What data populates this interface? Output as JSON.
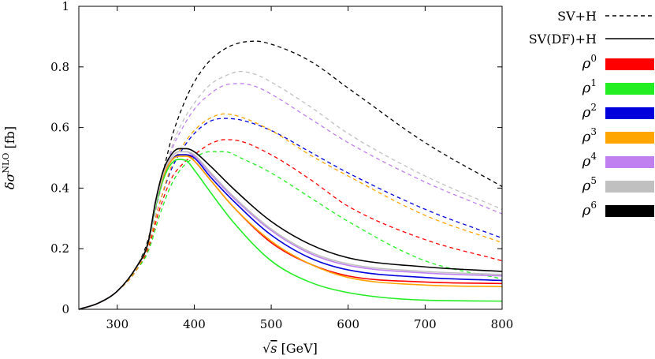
{
  "chart_data": {
    "type": "line",
    "title": "",
    "xlabel": "√s [GeV]",
    "ylabel": "δσ^NLO [fb]",
    "xlim": [
      250,
      800
    ],
    "ylim": [
      0,
      1
    ],
    "x_ticks": [
      300,
      400,
      500,
      600,
      700,
      800
    ],
    "y_ticks": [
      0,
      0.2,
      0.4,
      0.6,
      0.8,
      1
    ],
    "x_tick_labels": [
      "300",
      "400",
      "500",
      "600",
      "700",
      "800"
    ],
    "y_tick_labels": [
      "0",
      "0.2",
      "0.4",
      "0.6",
      "0.8",
      "1"
    ],
    "grid": false,
    "legend_position": "right, outside plot",
    "legend": [
      {
        "label": "SV+H",
        "style": "dashed",
        "color": "#000000"
      },
      {
        "label": "SV(DF)+H",
        "style": "solid",
        "color": "#000000"
      },
      {
        "label": "ρ",
        "sup": "0",
        "style": "band",
        "color": "#ff0000"
      },
      {
        "label": "ρ",
        "sup": "1",
        "style": "band",
        "color": "#22ee22"
      },
      {
        "label": "ρ",
        "sup": "2",
        "style": "band",
        "color": "#0000dd"
      },
      {
        "label": "ρ",
        "sup": "3",
        "style": "band",
        "color": "#ffa500"
      },
      {
        "label": "ρ",
        "sup": "4",
        "style": "band",
        "color": "#c080f0"
      },
      {
        "label": "ρ",
        "sup": "5",
        "style": "band",
        "color": "#c0c0c0"
      },
      {
        "label": "ρ",
        "sup": "6",
        "style": "band",
        "color": "#000000"
      }
    ],
    "series": [
      {
        "name": "SV+H ρ⁰",
        "color": "#ff0000",
        "dashed": true,
        "x": [
          250,
          275,
          300,
          325,
          340,
          355,
          370,
          385,
          400,
          420,
          440,
          460,
          500,
          550,
          600,
          700,
          800
        ],
        "y": [
          0,
          0.02,
          0.06,
          0.13,
          0.2,
          0.33,
          0.43,
          0.48,
          0.51,
          0.545,
          0.56,
          0.555,
          0.51,
          0.43,
          0.34,
          0.23,
          0.16
        ]
      },
      {
        "name": "SV+H ρ¹",
        "color": "#22ee22",
        "dashed": true,
        "x": [
          250,
          275,
          300,
          325,
          340,
          355,
          370,
          385,
          400,
          420,
          440,
          460,
          500,
          550,
          600,
          700,
          800
        ],
        "y": [
          0,
          0.02,
          0.06,
          0.13,
          0.19,
          0.31,
          0.41,
          0.47,
          0.5,
          0.52,
          0.52,
          0.5,
          0.45,
          0.37,
          0.29,
          0.16,
          0.1
        ]
      },
      {
        "name": "SV+H ρ²",
        "color": "#0000dd",
        "dashed": true,
        "x": [
          250,
          275,
          300,
          325,
          340,
          355,
          370,
          385,
          400,
          420,
          440,
          460,
          500,
          550,
          600,
          700,
          800
        ],
        "y": [
          0,
          0.02,
          0.06,
          0.13,
          0.21,
          0.35,
          0.46,
          0.53,
          0.58,
          0.62,
          0.63,
          0.625,
          0.59,
          0.52,
          0.45,
          0.33,
          0.235
        ]
      },
      {
        "name": "SV+H ρ³",
        "color": "#ffa500",
        "dashed": true,
        "x": [
          250,
          275,
          300,
          325,
          340,
          355,
          370,
          385,
          400,
          420,
          440,
          460,
          500,
          550,
          600,
          700,
          800
        ],
        "y": [
          0,
          0.02,
          0.06,
          0.13,
          0.21,
          0.35,
          0.47,
          0.54,
          0.59,
          0.63,
          0.645,
          0.635,
          0.59,
          0.51,
          0.44,
          0.31,
          0.22
        ]
      },
      {
        "name": "SV+H ρ⁴",
        "color": "#c080f0",
        "dashed": true,
        "x": [
          250,
          275,
          300,
          325,
          340,
          355,
          370,
          385,
          400,
          420,
          440,
          460,
          480,
          500,
          550,
          600,
          700,
          800
        ],
        "y": [
          0,
          0.02,
          0.06,
          0.14,
          0.22,
          0.38,
          0.52,
          0.6,
          0.66,
          0.71,
          0.74,
          0.745,
          0.735,
          0.71,
          0.63,
          0.55,
          0.42,
          0.315
        ]
      },
      {
        "name": "SV+H ρ⁵",
        "color": "#c0c0c0",
        "dashed": true,
        "x": [
          250,
          275,
          300,
          325,
          340,
          355,
          370,
          385,
          400,
          420,
          440,
          460,
          480,
          500,
          550,
          600,
          700,
          800
        ],
        "y": [
          0,
          0.02,
          0.06,
          0.14,
          0.22,
          0.39,
          0.53,
          0.62,
          0.68,
          0.74,
          0.77,
          0.785,
          0.775,
          0.75,
          0.67,
          0.58,
          0.44,
          0.33
        ]
      },
      {
        "name": "SV+H ρ⁶",
        "color": "#000000",
        "dashed": true,
        "x": [
          250,
          275,
          300,
          325,
          340,
          355,
          370,
          385,
          400,
          420,
          440,
          460,
          480,
          500,
          550,
          600,
          700,
          800
        ],
        "y": [
          0,
          0.02,
          0.06,
          0.14,
          0.23,
          0.4,
          0.56,
          0.67,
          0.75,
          0.82,
          0.86,
          0.88,
          0.885,
          0.875,
          0.82,
          0.73,
          0.55,
          0.405
        ]
      },
      {
        "name": "SV(DF)+H ρ⁰",
        "color": "#ff0000",
        "dashed": false,
        "x": [
          250,
          275,
          300,
          325,
          340,
          350,
          360,
          370,
          380,
          390,
          400,
          420,
          450,
          500,
          550,
          600,
          700,
          800
        ],
        "y": [
          0,
          0.02,
          0.06,
          0.14,
          0.22,
          0.35,
          0.44,
          0.49,
          0.51,
          0.51,
          0.49,
          0.43,
          0.34,
          0.22,
          0.15,
          0.11,
          0.09,
          0.085
        ]
      },
      {
        "name": "SV(DF)+H ρ¹",
        "color": "#22ee22",
        "dashed": false,
        "x": [
          250,
          275,
          300,
          325,
          340,
          350,
          360,
          370,
          380,
          390,
          400,
          420,
          450,
          500,
          550,
          600,
          700,
          800
        ],
        "y": [
          0,
          0.02,
          0.06,
          0.14,
          0.22,
          0.34,
          0.43,
          0.48,
          0.495,
          0.49,
          0.46,
          0.39,
          0.29,
          0.16,
          0.09,
          0.055,
          0.03,
          0.027
        ]
      },
      {
        "name": "SV(DF)+H ρ²",
        "color": "#0000dd",
        "dashed": false,
        "x": [
          250,
          275,
          300,
          325,
          340,
          350,
          360,
          370,
          380,
          390,
          400,
          420,
          450,
          500,
          550,
          600,
          700,
          800
        ],
        "y": [
          0,
          0.02,
          0.06,
          0.14,
          0.22,
          0.35,
          0.44,
          0.49,
          0.51,
          0.51,
          0.5,
          0.44,
          0.36,
          0.245,
          0.17,
          0.13,
          0.105,
          0.095
        ]
      },
      {
        "name": "SV(DF)+H ρ³",
        "color": "#ffa500",
        "dashed": false,
        "x": [
          250,
          275,
          300,
          325,
          340,
          350,
          360,
          370,
          380,
          390,
          400,
          420,
          450,
          500,
          550,
          600,
          700,
          800
        ],
        "y": [
          0,
          0.02,
          0.06,
          0.14,
          0.22,
          0.35,
          0.44,
          0.49,
          0.505,
          0.505,
          0.49,
          0.43,
          0.34,
          0.225,
          0.15,
          0.105,
          0.08,
          0.075
        ]
      },
      {
        "name": "SV(DF)+H ρ⁴",
        "color": "#c080f0",
        "dashed": false,
        "x": [
          250,
          275,
          300,
          325,
          340,
          350,
          360,
          370,
          380,
          390,
          400,
          420,
          450,
          500,
          550,
          600,
          700,
          800
        ],
        "y": [
          0,
          0.02,
          0.06,
          0.14,
          0.22,
          0.35,
          0.45,
          0.5,
          0.52,
          0.52,
          0.505,
          0.45,
          0.37,
          0.26,
          0.185,
          0.145,
          0.12,
          0.11
        ]
      },
      {
        "name": "SV(DF)+H ρ⁵",
        "color": "#c0c0c0",
        "dashed": false,
        "x": [
          250,
          275,
          300,
          325,
          340,
          350,
          360,
          370,
          380,
          390,
          400,
          420,
          450,
          500,
          550,
          600,
          700,
          800
        ],
        "y": [
          0,
          0.02,
          0.06,
          0.14,
          0.22,
          0.35,
          0.45,
          0.5,
          0.52,
          0.52,
          0.51,
          0.455,
          0.375,
          0.265,
          0.19,
          0.15,
          0.125,
          0.115
        ]
      },
      {
        "name": "SV(DF)+H ρ⁶",
        "color": "#000000",
        "dashed": false,
        "x": [
          250,
          275,
          300,
          325,
          340,
          350,
          360,
          370,
          380,
          390,
          400,
          420,
          450,
          500,
          550,
          600,
          700,
          800
        ],
        "y": [
          0,
          0.02,
          0.06,
          0.14,
          0.22,
          0.36,
          0.46,
          0.51,
          0.53,
          0.53,
          0.52,
          0.475,
          0.4,
          0.29,
          0.215,
          0.17,
          0.14,
          0.125
        ]
      }
    ]
  }
}
